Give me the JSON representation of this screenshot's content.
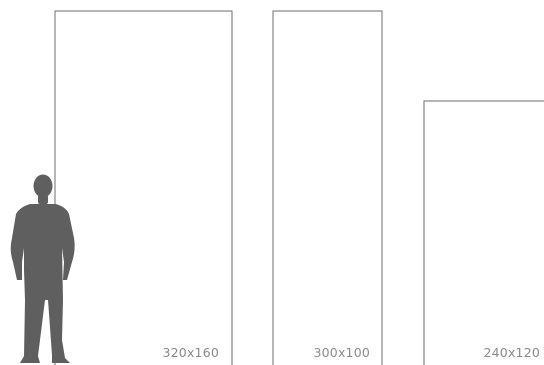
{
  "diagram": {
    "colors": {
      "outline": "#6e6e6e",
      "silhouette": "#5f5f5f",
      "label": "#8a8a8a",
      "background": "#ffffff"
    },
    "panels": [
      {
        "id": "panel-1",
        "label": "320x160"
      },
      {
        "id": "panel-2",
        "label": "300x100"
      },
      {
        "id": "panel-3",
        "label": "240x120"
      }
    ],
    "figure": {
      "icon": "person-silhouette-icon"
    }
  }
}
